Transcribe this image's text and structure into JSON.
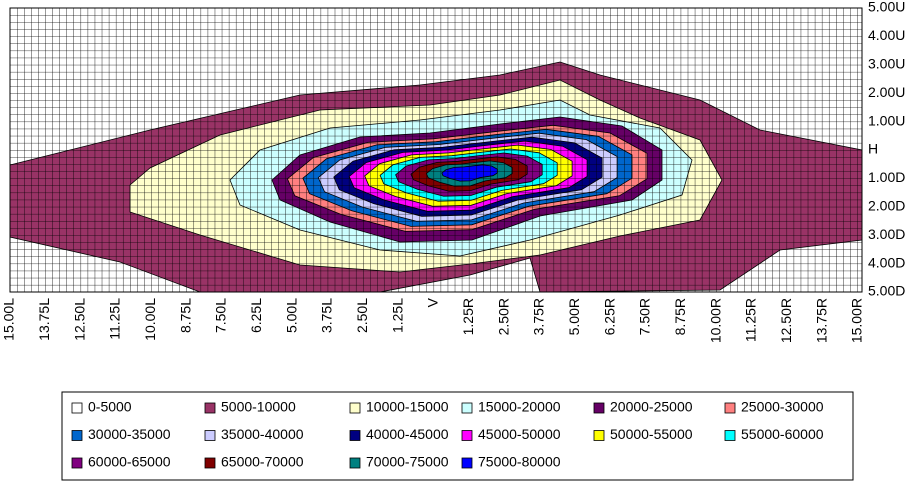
{
  "chart_data": {
    "type": "contour",
    "x_categories": [
      "15.00L",
      "13.75L",
      "12.50L",
      "11.25L",
      "10.00L",
      "8.75L",
      "7.50L",
      "6.25L",
      "5.00L",
      "3.75L",
      "2.50L",
      "1.25L",
      "V",
      "1.25R",
      "2.50R",
      "3.75R",
      "5.00R",
      "6.25R",
      "7.50R",
      "8.75R",
      "10.00R",
      "11.25R",
      "12.50R",
      "13.75R",
      "15.00R"
    ],
    "y_categories": [
      "5.00U",
      "4.00U",
      "3.00U",
      "2.00U",
      "1.00U",
      "H",
      "1.00D",
      "2.00D",
      "3.00D",
      "4.00D",
      "5.00D"
    ],
    "series": [
      {
        "name": "0-5000",
        "color": "#ffffff"
      },
      {
        "name": "5000-10000",
        "color": "#993366"
      },
      {
        "name": "10000-15000",
        "color": "#ffffcc"
      },
      {
        "name": "15000-20000",
        "color": "#ccffff"
      },
      {
        "name": "20000-25000",
        "color": "#660066"
      },
      {
        "name": "25000-30000",
        "color": "#ff8080"
      },
      {
        "name": "30000-35000",
        "color": "#0066cc"
      },
      {
        "name": "35000-40000",
        "color": "#ccccff"
      },
      {
        "name": "40000-45000",
        "color": "#000080"
      },
      {
        "name": "45000-50000",
        "color": "#ff00ff"
      },
      {
        "name": "50000-55000",
        "color": "#ffff00"
      },
      {
        "name": "55000-60000",
        "color": "#00ffff"
      },
      {
        "name": "60000-65000",
        "color": "#800080"
      },
      {
        "name": "65000-70000",
        "color": "#800000"
      },
      {
        "name": "70000-75000",
        "color": "#008080"
      },
      {
        "name": "75000-80000",
        "color": "#0000ff"
      }
    ],
    "legend": "bottom"
  }
}
